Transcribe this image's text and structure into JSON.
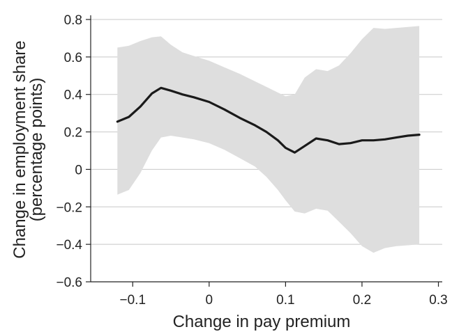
{
  "chart_data": {
    "type": "line",
    "xlabel": "Change in pay premium",
    "ylabel_line1": "Change in employment share",
    "ylabel_line2": "(percentage points)",
    "xlim": [
      -0.155,
      0.305
    ],
    "ylim": [
      -0.6,
      0.8
    ],
    "x_ticks": [
      -0.1,
      0,
      0.1,
      0.2,
      0.3
    ],
    "x_tick_labels": [
      "−0.1",
      "0",
      "0.1",
      "0.2",
      "0.3"
    ],
    "y_ticks": [
      -0.6,
      -0.4,
      -0.2,
      0,
      0.2,
      0.4,
      0.6,
      0.8
    ],
    "y_tick_labels": [
      "−0.6",
      "−0.4",
      "−0.2",
      "0",
      "0.2",
      "0.4",
      "0.6",
      "0.8"
    ],
    "grid": "horizontal",
    "colors": {
      "line": "#1a1a1a",
      "band": "#dedede",
      "grid": "#c8c8c8"
    },
    "series": [
      {
        "x": [
          -0.12,
          -0.105,
          -0.09,
          -0.075,
          -0.063,
          -0.05,
          -0.035,
          -0.02,
          0.0,
          0.02,
          0.04,
          0.06,
          0.075,
          0.09,
          0.1,
          0.112,
          0.125,
          0.14,
          0.155,
          0.17,
          0.185,
          0.2,
          0.215,
          0.23,
          0.245,
          0.26,
          0.275
        ],
        "y": [
          0.255,
          0.28,
          0.335,
          0.405,
          0.435,
          0.42,
          0.4,
          0.385,
          0.36,
          0.32,
          0.275,
          0.235,
          0.2,
          0.155,
          0.115,
          0.09,
          0.125,
          0.165,
          0.155,
          0.135,
          0.14,
          0.155,
          0.155,
          0.16,
          0.17,
          0.18,
          0.185
        ],
        "lower": [
          -0.135,
          -0.11,
          -0.02,
          0.1,
          0.17,
          0.18,
          0.17,
          0.16,
          0.14,
          0.105,
          0.06,
          0.015,
          -0.04,
          -0.11,
          -0.165,
          -0.225,
          -0.235,
          -0.21,
          -0.22,
          -0.28,
          -0.34,
          -0.41,
          -0.445,
          -0.42,
          -0.41,
          -0.405,
          -0.4
        ],
        "upper": [
          0.65,
          0.66,
          0.685,
          0.705,
          0.71,
          0.665,
          0.625,
          0.605,
          0.58,
          0.545,
          0.51,
          0.47,
          0.44,
          0.41,
          0.39,
          0.4,
          0.49,
          0.535,
          0.525,
          0.555,
          0.62,
          0.695,
          0.755,
          0.75,
          0.755,
          0.76,
          0.765
        ]
      }
    ]
  }
}
